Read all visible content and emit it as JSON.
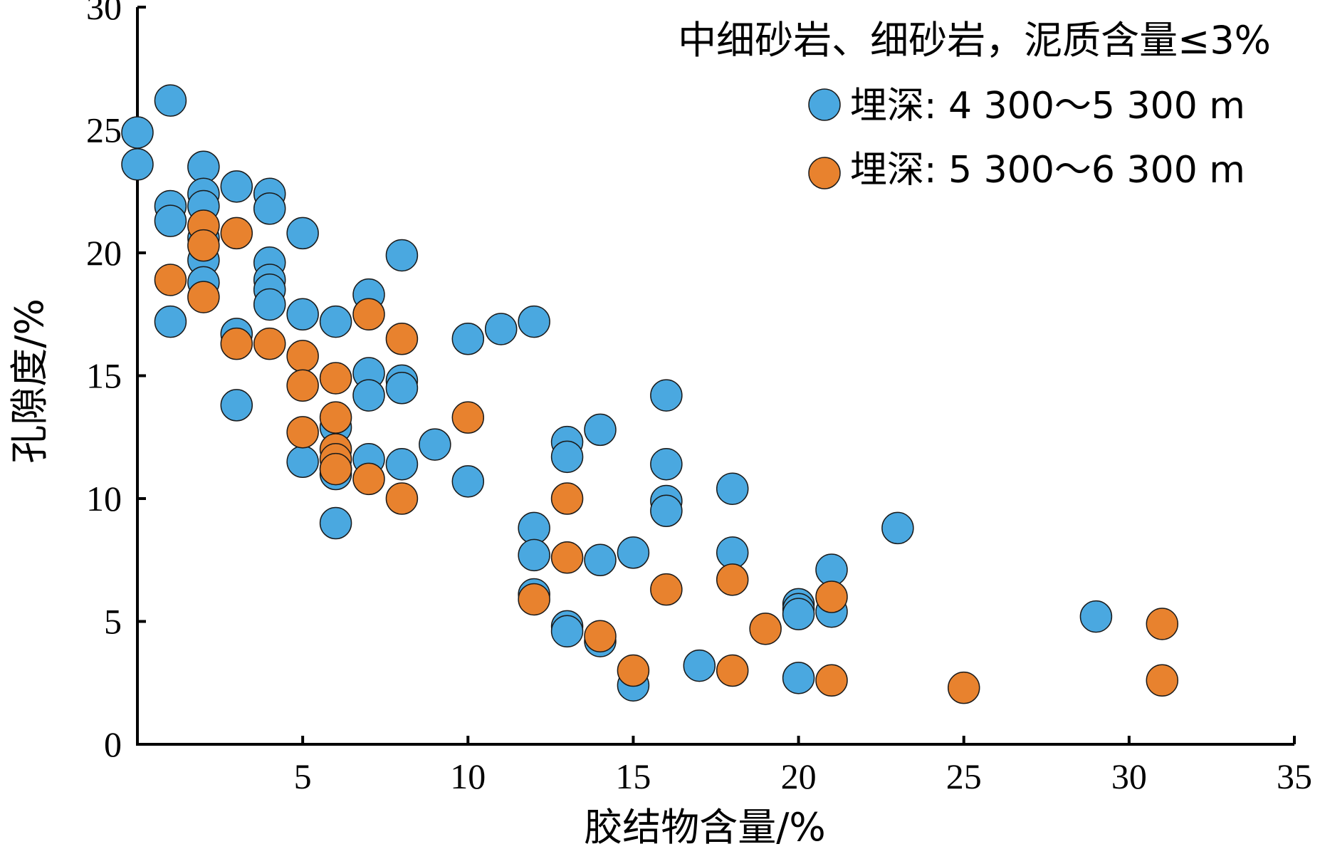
{
  "chart_data": {
    "type": "scatter",
    "title": "中细砂岩、细砂岩，泥质含量≤3%",
    "xlabel": "胶结物含量/%",
    "ylabel": "孔隙度/%",
    "xlim": [
      0,
      35
    ],
    "ylim": [
      0,
      30
    ],
    "x_ticks": [
      5,
      10,
      15,
      20,
      25,
      30,
      35
    ],
    "y_ticks": [
      0,
      5,
      10,
      15,
      20,
      25,
      30
    ],
    "legend_position": "top-right",
    "grid": false,
    "series": [
      {
        "name": "埋深: 4 300～5 300 m",
        "color": "#4aa8e0",
        "points": [
          [
            0,
            24.9
          ],
          [
            0,
            23.6
          ],
          [
            1,
            26.2
          ],
          [
            1,
            21.9
          ],
          [
            1,
            21.3
          ],
          [
            1,
            17.2
          ],
          [
            2,
            23.5
          ],
          [
            2,
            22.4
          ],
          [
            2,
            21.9
          ],
          [
            2,
            20.6
          ],
          [
            2,
            19.7
          ],
          [
            2,
            18.8
          ],
          [
            3,
            22.7
          ],
          [
            3,
            16.7
          ],
          [
            3,
            13.8
          ],
          [
            4,
            22.4
          ],
          [
            4,
            21.8
          ],
          [
            4,
            19.6
          ],
          [
            4,
            18.9
          ],
          [
            4,
            18.5
          ],
          [
            4,
            17.9
          ],
          [
            5,
            20.8
          ],
          [
            5,
            17.5
          ],
          [
            5,
            11.5
          ],
          [
            6,
            17.2
          ],
          [
            6,
            12.9
          ],
          [
            6,
            11.2
          ],
          [
            6,
            11.0
          ],
          [
            6,
            9.0
          ],
          [
            7,
            18.3
          ],
          [
            7,
            15.1
          ],
          [
            7,
            14.2
          ],
          [
            7,
            11.6
          ],
          [
            8,
            19.9
          ],
          [
            8,
            14.8
          ],
          [
            8,
            14.5
          ],
          [
            8,
            11.4
          ],
          [
            9,
            12.2
          ],
          [
            10,
            16.5
          ],
          [
            10,
            10.7
          ],
          [
            11,
            16.9
          ],
          [
            12,
            17.2
          ],
          [
            12,
            8.8
          ],
          [
            12,
            7.7
          ],
          [
            12,
            6.1
          ],
          [
            13,
            12.3
          ],
          [
            13,
            11.7
          ],
          [
            13,
            4.8
          ],
          [
            13,
            4.6
          ],
          [
            14,
            12.8
          ],
          [
            14,
            7.5
          ],
          [
            14,
            4.2
          ],
          [
            15,
            7.8
          ],
          [
            15,
            2.4
          ],
          [
            16,
            14.2
          ],
          [
            16,
            11.4
          ],
          [
            16,
            9.9
          ],
          [
            16,
            9.5
          ],
          [
            17,
            3.2
          ],
          [
            18,
            10.4
          ],
          [
            18,
            7.8
          ],
          [
            20,
            5.7
          ],
          [
            20,
            5.5
          ],
          [
            20,
            5.3
          ],
          [
            20,
            2.7
          ],
          [
            21,
            7.1
          ],
          [
            21,
            5.4
          ],
          [
            23,
            8.8
          ],
          [
            29,
            5.2
          ]
        ]
      },
      {
        "name": "埋深: 5 300～6 300 m",
        "color": "#e8822e",
        "points": [
          [
            1,
            18.9
          ],
          [
            2,
            21.1
          ],
          [
            2,
            20.3
          ],
          [
            2,
            18.2
          ],
          [
            3,
            20.8
          ],
          [
            3,
            16.3
          ],
          [
            4,
            16.3
          ],
          [
            5,
            15.8
          ],
          [
            5,
            14.6
          ],
          [
            5,
            12.7
          ],
          [
            6,
            14.9
          ],
          [
            6,
            13.3
          ],
          [
            6,
            12.0
          ],
          [
            6,
            11.6
          ],
          [
            6,
            11.2
          ],
          [
            7,
            17.5
          ],
          [
            7,
            10.8
          ],
          [
            8,
            16.5
          ],
          [
            8,
            10.0
          ],
          [
            10,
            13.3
          ],
          [
            12,
            5.9
          ],
          [
            13,
            10.0
          ],
          [
            13,
            7.6
          ],
          [
            14,
            4.4
          ],
          [
            15,
            3.0
          ],
          [
            16,
            6.3
          ],
          [
            18,
            6.7
          ],
          [
            18,
            3.0
          ],
          [
            19,
            4.7
          ],
          [
            21,
            6.0
          ],
          [
            21,
            2.6
          ],
          [
            25,
            2.3
          ],
          [
            31,
            4.9
          ],
          [
            31,
            2.6
          ]
        ]
      }
    ]
  }
}
